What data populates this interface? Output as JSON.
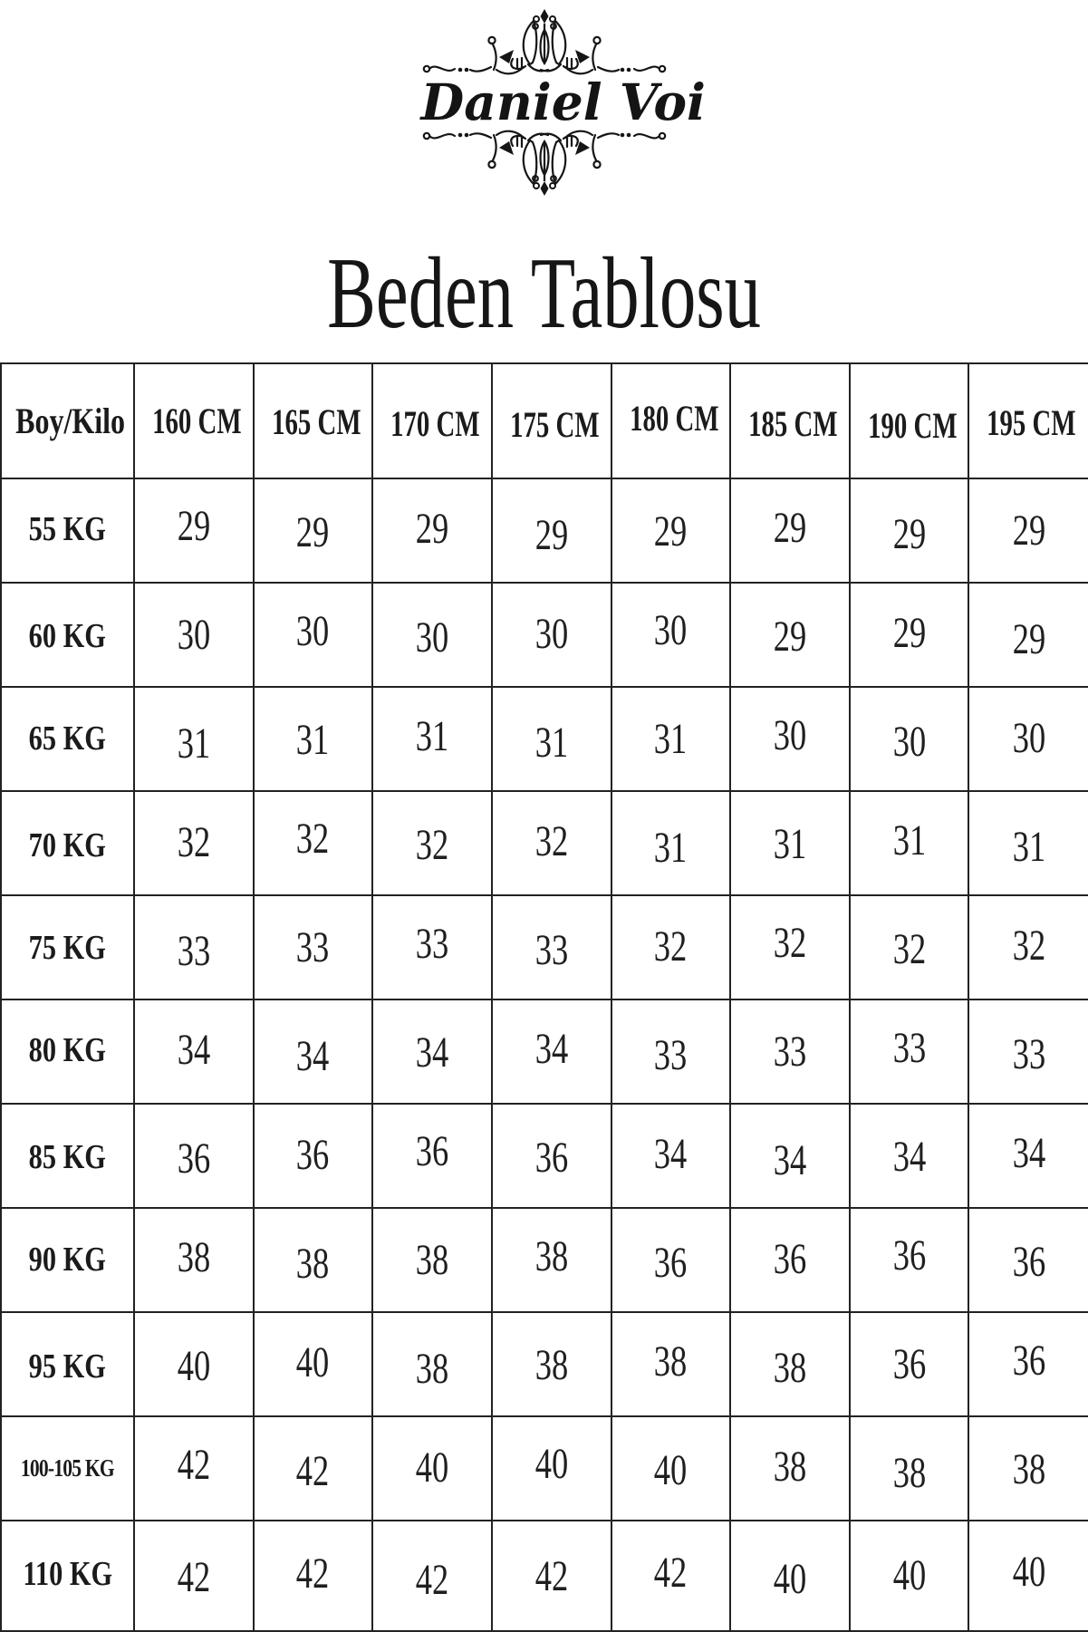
{
  "brand": {
    "name": "Daniel Voi"
  },
  "title": "Beden Tablosu",
  "chart_data": {
    "type": "table",
    "title": "Beden Tablosu",
    "corner_header": "Boy/Kilo",
    "column_headers": [
      "160 CM",
      "165 CM",
      "170 CM",
      "175 CM",
      "180 CM",
      "185 CM",
      "190 CM",
      "195 CM"
    ],
    "rows": [
      {
        "label": "55 KG",
        "values": [
          29,
          29,
          29,
          29,
          29,
          29,
          29,
          29
        ]
      },
      {
        "label": "60 KG",
        "values": [
          30,
          30,
          30,
          30,
          30,
          29,
          29,
          29
        ]
      },
      {
        "label": "65 KG",
        "values": [
          31,
          31,
          31,
          31,
          31,
          30,
          30,
          30
        ]
      },
      {
        "label": "70 KG",
        "values": [
          32,
          32,
          32,
          32,
          31,
          31,
          31,
          31
        ]
      },
      {
        "label": "75 KG",
        "values": [
          33,
          33,
          33,
          33,
          32,
          32,
          32,
          32
        ]
      },
      {
        "label": "80 KG",
        "values": [
          34,
          34,
          34,
          34,
          33,
          33,
          33,
          33
        ]
      },
      {
        "label": "85 KG",
        "values": [
          36,
          36,
          36,
          36,
          34,
          34,
          34,
          34
        ]
      },
      {
        "label": "90 KG",
        "values": [
          38,
          38,
          38,
          38,
          36,
          36,
          36,
          36
        ]
      },
      {
        "label": "95 KG",
        "values": [
          40,
          40,
          38,
          38,
          38,
          38,
          36,
          36
        ]
      },
      {
        "label": "100-105 KG",
        "values": [
          42,
          42,
          40,
          40,
          40,
          38,
          38,
          38
        ]
      },
      {
        "label": "110 KG",
        "values": [
          42,
          42,
          42,
          42,
          42,
          40,
          40,
          40
        ]
      }
    ]
  },
  "colors": {
    "ink": "#1a1a1a",
    "background": "#ffffff"
  }
}
